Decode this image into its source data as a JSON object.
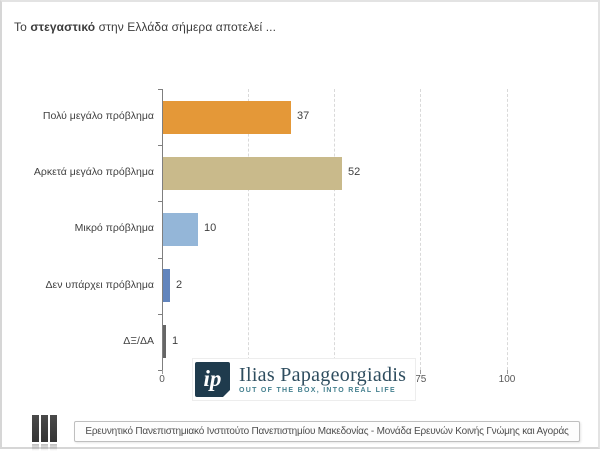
{
  "title": {
    "prefix": "Το ",
    "bold": "στεγαστικό",
    "suffix": " στην Ελλάδα σήμερα αποτελεί ..."
  },
  "chart_data": {
    "type": "bar",
    "orientation": "horizontal",
    "title": "Το στεγαστικό στην Ελλάδα σήμερα αποτελεί ...",
    "categories": [
      "Πολύ μεγάλο πρόβλημα",
      "Αρκετά μεγάλο πρόβλημα",
      "Μικρό πρόβλημα",
      "Δεν υπάρχει πρόβλημα",
      "ΔΞ/ΔΑ"
    ],
    "values": [
      37,
      52,
      10,
      2,
      1
    ],
    "bar_colors": [
      "#E49838",
      "#C9BA8B",
      "#94B6D8",
      "#6285BD",
      "#666666"
    ],
    "xlim": [
      0,
      100
    ],
    "x_ticks": [
      0,
      25,
      50,
      75,
      100
    ],
    "grid": "vertical-dashed",
    "legend": "none"
  },
  "brand": {
    "monogram": "ip",
    "name": "Ilias Papageorgiadis",
    "tagline": "OUT OF THE BOX, INTO REAL LIFE",
    "navy": "#1F3B4D",
    "teal": "#44808F"
  },
  "footer": {
    "text": "Ερευνητικό Πανεπιστημιακό Ινστιτούτο Πανεπιστημίου Μακεδονίας - Μονάδα Ερευνών Κοινής Γνώμης και Αγοράς"
  }
}
